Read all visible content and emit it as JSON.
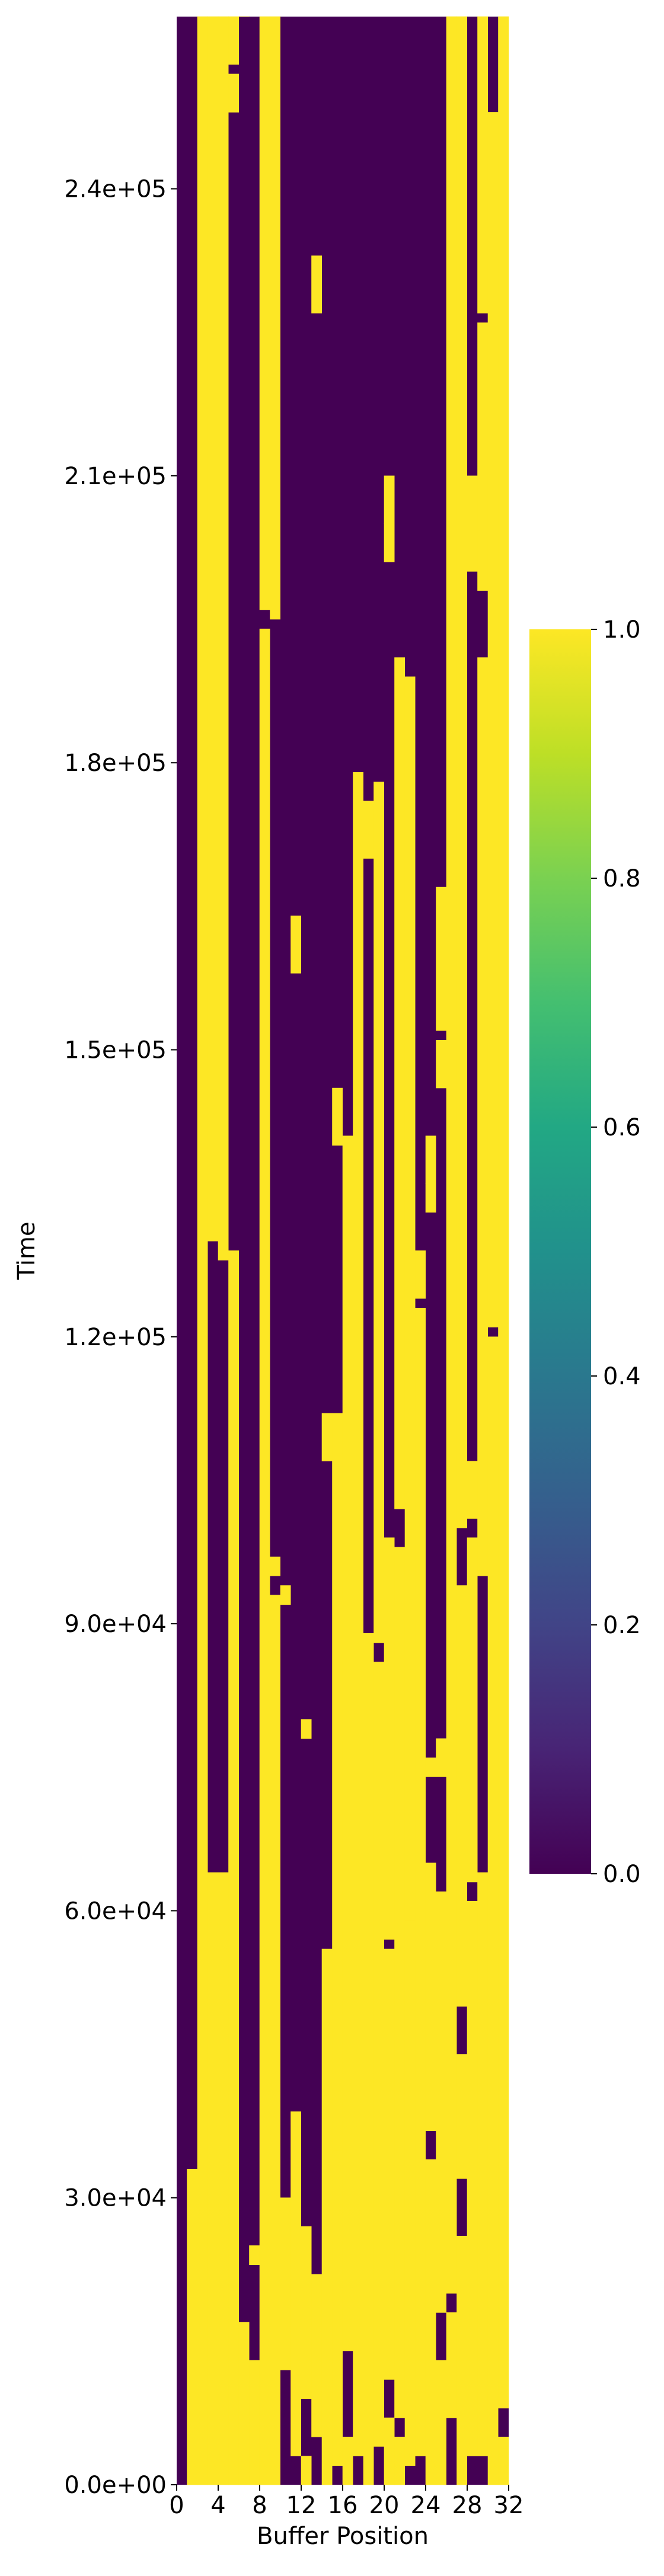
{
  "chart_data": {
    "type": "heatmap",
    "title": "",
    "xlabel": "Buffer Position",
    "ylabel": "Time",
    "x_range": [
      0,
      32
    ],
    "y_range": [
      0,
      258000
    ],
    "x_ticks": [
      "0",
      "4",
      "8",
      "12",
      "16",
      "20",
      "24",
      "28",
      "32"
    ],
    "y_ticks": [
      {
        "value": 0,
        "label": "0.0e+00"
      },
      {
        "value": 30000,
        "label": "3.0e+04"
      },
      {
        "value": 60000,
        "label": "6.0e+04"
      },
      {
        "value": 90000,
        "label": "9.0e+04"
      },
      {
        "value": 120000,
        "label": "1.2e+05"
      },
      {
        "value": 150000,
        "label": "1.5e+05"
      },
      {
        "value": 180000,
        "label": "1.8e+05"
      },
      {
        "value": 210000,
        "label": "2.1e+05"
      },
      {
        "value": 240000,
        "label": "2.4e+05"
      }
    ],
    "colormap": "viridis",
    "colorbar": {
      "min": 0.0,
      "max": 1.0,
      "ticks": [
        "0.0",
        "0.2",
        "0.4",
        "0.6",
        "0.8",
        "1.0"
      ],
      "low_color": "#440154",
      "high_color": "#fde725"
    },
    "value_set": [
      0,
      1
    ],
    "row_step": 1000,
    "columns": [
      {
        "col": 0,
        "ones": []
      },
      {
        "col": 1,
        "ones": [
          [
            0,
            32000
          ]
        ]
      },
      {
        "col": 2,
        "ones": [
          [
            0,
            258000
          ]
        ]
      },
      {
        "col": 3,
        "ones": [
          [
            0,
            63000
          ],
          [
            130000,
            258000
          ]
        ]
      },
      {
        "col": 4,
        "ones": [
          [
            0,
            63000
          ],
          [
            128000,
            258000
          ]
        ]
      },
      {
        "col": 5,
        "ones": [
          [
            0,
            128000
          ],
          [
            248000,
            251000
          ],
          [
            253000,
            258000
          ]
        ]
      },
      {
        "col": 6,
        "ones": [
          [
            0,
            16000
          ],
          [
            258000,
            258000
          ]
        ]
      },
      {
        "col": 7,
        "ones": [
          [
            0,
            12000
          ],
          [
            23000,
            24000
          ]
        ]
      },
      {
        "col": 8,
        "ones": [
          [
            0,
            193000
          ],
          [
            196000,
            258000
          ]
        ]
      },
      {
        "col": 9,
        "ones": [
          [
            0,
            47000
          ],
          [
            48000,
            92000
          ],
          [
            95000,
            96000
          ],
          [
            195000,
            197000
          ],
          [
            198000,
            258000
          ]
        ]
      },
      {
        "col": 10,
        "ones": [
          [
            12000,
            29000
          ],
          [
            92000,
            93000
          ]
        ]
      },
      {
        "col": 11,
        "ones": [
          [
            3000,
            38000
          ],
          [
            158000,
            163000
          ]
        ]
      },
      {
        "col": 12,
        "ones": [
          [
            0,
            2000
          ],
          [
            9000,
            26000
          ],
          [
            78000,
            79000
          ]
        ]
      },
      {
        "col": 13,
        "ones": [
          [
            5000,
            21000
          ],
          [
            227000,
            232000
          ]
        ]
      },
      {
        "col": 14,
        "ones": [
          [
            0,
            55000
          ],
          [
            107000,
            111000
          ]
        ]
      },
      {
        "col": 15,
        "ones": [
          [
            2000,
            34000
          ],
          [
            35000,
            111000
          ],
          [
            140000,
            145000
          ]
        ]
      },
      {
        "col": 16,
        "ones": [
          [
            0,
            4000
          ],
          [
            14000,
            71000
          ],
          [
            72000,
            140000
          ]
        ]
      },
      {
        "col": 17,
        "ones": [
          [
            3000,
            70000
          ],
          [
            71000,
            178000
          ]
        ]
      },
      {
        "col": 18,
        "ones": [
          [
            0,
            88000
          ],
          [
            170000,
            175000
          ]
        ]
      },
      {
        "col": 19,
        "ones": [
          [
            4000,
            85000
          ],
          [
            88000,
            177000
          ]
        ]
      },
      {
        "col": 20,
        "ones": [
          [
            0,
            6000
          ],
          [
            11000,
            55000
          ],
          [
            57000,
            98000
          ],
          [
            201000,
            204000
          ],
          [
            205000,
            209000
          ]
        ]
      },
      {
        "col": 21,
        "ones": [
          [
            0,
            4000
          ],
          [
            7000,
            97000
          ],
          [
            102000,
            190000
          ]
        ]
      },
      {
        "col": 22,
        "ones": [
          [
            2000,
            58000
          ],
          [
            59000,
            188000
          ]
        ]
      },
      {
        "col": 23,
        "ones": [
          [
            3000,
            122000
          ],
          [
            124000,
            128000
          ]
        ]
      },
      {
        "col": 24,
        "ones": [
          [
            0,
            33000
          ],
          [
            37000,
            64000
          ],
          [
            74000,
            75000
          ],
          [
            133000,
            135000
          ],
          [
            136000,
            140000
          ]
        ]
      },
      {
        "col": 25,
        "ones": [
          [
            0,
            12000
          ],
          [
            18000,
            61000
          ],
          [
            74000,
            77000
          ],
          [
            146000,
            150000
          ],
          [
            152000,
            166000
          ]
        ]
      },
      {
        "col": 26,
        "ones": [
          [
            7000,
            17000
          ],
          [
            20000,
            258000
          ]
        ]
      },
      {
        "col": 27,
        "ones": [
          [
            0,
            25000
          ],
          [
            32000,
            44000
          ],
          [
            50000,
            93000
          ],
          [
            100000,
            258000
          ]
        ]
      },
      {
        "col": 28,
        "ones": [
          [
            3000,
            60000
          ],
          [
            63000,
            98000
          ],
          [
            101000,
            106000
          ],
          [
            200000,
            209000
          ]
        ]
      },
      {
        "col": 29,
        "ones": [
          [
            3000,
            63000
          ],
          [
            95000,
            190000
          ],
          [
            198000,
            225000
          ],
          [
            227000,
            258000
          ]
        ]
      },
      {
        "col": 30,
        "ones": [
          [
            0,
            119000
          ],
          [
            121000,
            247000
          ]
        ]
      },
      {
        "col": 31,
        "ones": [
          [
            0,
            4000
          ],
          [
            8000,
            258000
          ]
        ]
      }
    ]
  }
}
